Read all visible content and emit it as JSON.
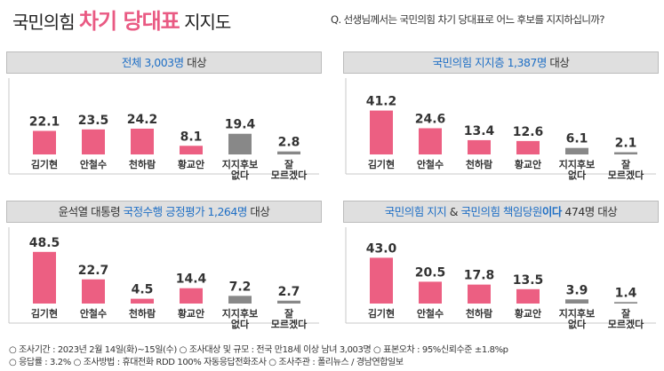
{
  "header": {
    "title_prefix": "국민의힘",
    "title_highlight": "차기 당대표",
    "title_suffix": "지지도",
    "question": "Q. 선생님께서는 국민의힘 차기 당대표로 어느 후보를 지지하십니까?"
  },
  "colors": {
    "candidate": "#ec5f82",
    "undecided": "#888888",
    "accent_blue": "#1f6fc5",
    "title_pink": "#e95a83"
  },
  "chart_data": [
    {
      "type": "bar",
      "title_parts": [
        {
          "text": "전체 3,003명",
          "style": "hl"
        },
        {
          "text": " 대상",
          "style": ""
        }
      ],
      "categories": [
        "김기현",
        "안철수",
        "천하람",
        "황교안",
        "지지후보 없다",
        "잘 모르겠다"
      ],
      "category_lines": [
        [
          "김기현"
        ],
        [
          "안철수"
        ],
        [
          "천하람"
        ],
        [
          "황교안"
        ],
        [
          "지지후보",
          "없다"
        ],
        [
          "잘",
          "모르겠다"
        ]
      ],
      "values": [
        22.1,
        23.5,
        24.2,
        8.1,
        19.4,
        2.8
      ],
      "labels": [
        "22.1",
        "23.5",
        "24.2",
        "8.1",
        "19.4",
        "2.8"
      ],
      "ylim": [
        0,
        50
      ]
    },
    {
      "type": "bar",
      "title_parts": [
        {
          "text": "국민의힘 지지층 1,387명",
          "style": "hl"
        },
        {
          "text": " 대상",
          "style": ""
        }
      ],
      "categories": [
        "김기현",
        "안철수",
        "천하람",
        "황교안",
        "지지후보 없다",
        "잘 모르겠다"
      ],
      "category_lines": [
        [
          "김기현"
        ],
        [
          "안철수"
        ],
        [
          "천하람"
        ],
        [
          "황교안"
        ],
        [
          "지지후보",
          "없다"
        ],
        [
          "잘",
          "모르겠다"
        ]
      ],
      "values": [
        41.2,
        24.6,
        13.4,
        12.6,
        6.1,
        2.1
      ],
      "labels": [
        "41.2",
        "24.6",
        "13.4",
        "12.6",
        "6.1",
        "2.1"
      ],
      "ylim": [
        0,
        50
      ]
    },
    {
      "type": "bar",
      "title_parts": [
        {
          "text": "윤석열 대통령 ",
          "style": ""
        },
        {
          "text": "국정수행 긍정평가 1,264명",
          "style": "hl"
        },
        {
          "text": " 대상",
          "style": ""
        }
      ],
      "categories": [
        "김기현",
        "안철수",
        "천하람",
        "황교안",
        "지지후보 없다",
        "잘 모르겠다"
      ],
      "category_lines": [
        [
          "김기현"
        ],
        [
          "안철수"
        ],
        [
          "천하람"
        ],
        [
          "황교안"
        ],
        [
          "지지후보",
          "없다"
        ],
        [
          "잘",
          "모르겠다"
        ]
      ],
      "values": [
        48.5,
        22.7,
        4.5,
        14.4,
        7.2,
        2.7
      ],
      "labels": [
        "48.5",
        "22.7",
        "4.5",
        "14.4",
        "7.2",
        "2.7"
      ],
      "ylim": [
        0,
        50
      ]
    },
    {
      "type": "bar",
      "title_parts": [
        {
          "text": "국민의힘 지지",
          "style": "hl"
        },
        {
          "text": " & ",
          "style": ""
        },
        {
          "text": "국민의힘 책임당원",
          "style": "hl"
        },
        {
          "text": "이다",
          "style": "strong"
        },
        {
          "text": " 474명 대상",
          "style": ""
        }
      ],
      "categories": [
        "김기현",
        "안철수",
        "천하람",
        "황교안",
        "지지후보 없다",
        "잘 모르겠다"
      ],
      "category_lines": [
        [
          "김기현"
        ],
        [
          "안철수"
        ],
        [
          "천하람"
        ],
        [
          "황교안"
        ],
        [
          "지지후보",
          "없다"
        ],
        [
          "잘",
          "모르겠다"
        ]
      ],
      "values": [
        43.0,
        20.5,
        17.8,
        13.5,
        3.9,
        1.4
      ],
      "labels": [
        "43.0",
        "20.5",
        "17.8",
        "13.5",
        "3.9",
        "1.4"
      ],
      "ylim": [
        0,
        50
      ]
    }
  ],
  "footer": {
    "line1": "○ 조사기간 : 2023년 2월 14일(화)~15일(수)   ○ 조사대상 및 규모 : 전국 만18세 이상 남녀 3,003명   ○ 표본오차 : 95%신뢰수준 ±1.8%p",
    "line2": "○ 응답률 : 3.2%   ○ 조사방법 : 휴대전화 RDD 100% 자동응답전화조사   ○ 조사주관 : 폴리뉴스 / 경남연합일보"
  }
}
